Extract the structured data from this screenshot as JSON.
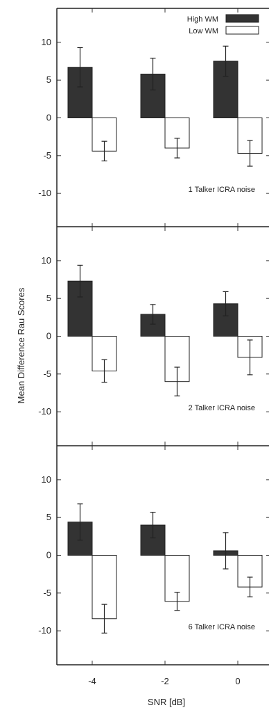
{
  "chart_data": {
    "type": "bar",
    "xlabel": "SNR [dB]",
    "ylabel": "Mean Difference Rau Scores",
    "categories": [
      "-4",
      "-2",
      "0"
    ],
    "ylim": [
      -14.5,
      14.5
    ],
    "yticks": [
      10,
      5,
      0,
      -5,
      -10
    ],
    "grid": false,
    "legend_position": "top-right",
    "legend": [
      {
        "name": "High WM",
        "color": "#333333"
      },
      {
        "name": "Low WM",
        "color": "#ffffff"
      }
    ],
    "panels": [
      {
        "annotation": "1 Talker ICRA noise",
        "series": [
          {
            "name": "High WM",
            "values": [
              6.7,
              5.8,
              7.5
            ],
            "errors": [
              2.6,
              2.1,
              2.0
            ]
          },
          {
            "name": "Low WM",
            "values": [
              -4.4,
              -4.0,
              -4.7
            ],
            "errors": [
              1.3,
              1.3,
              1.7
            ]
          }
        ]
      },
      {
        "annotation": "2 Talker ICRA noise",
        "series": [
          {
            "name": "High WM",
            "values": [
              7.3,
              2.9,
              4.3
            ],
            "errors": [
              2.1,
              1.3,
              1.6
            ]
          },
          {
            "name": "Low WM",
            "values": [
              -4.6,
              -6.0,
              -2.8
            ],
            "errors": [
              1.5,
              1.9,
              2.3
            ]
          }
        ]
      },
      {
        "annotation": "6 Talker ICRA noise",
        "series": [
          {
            "name": "High WM",
            "values": [
              4.4,
              4.0,
              0.6
            ],
            "errors": [
              2.4,
              1.7,
              2.4
            ]
          },
          {
            "name": "Low WM",
            "values": [
              -8.4,
              -6.1,
              -4.2
            ],
            "errors": [
              1.9,
              1.2,
              1.3
            ]
          }
        ]
      }
    ]
  }
}
